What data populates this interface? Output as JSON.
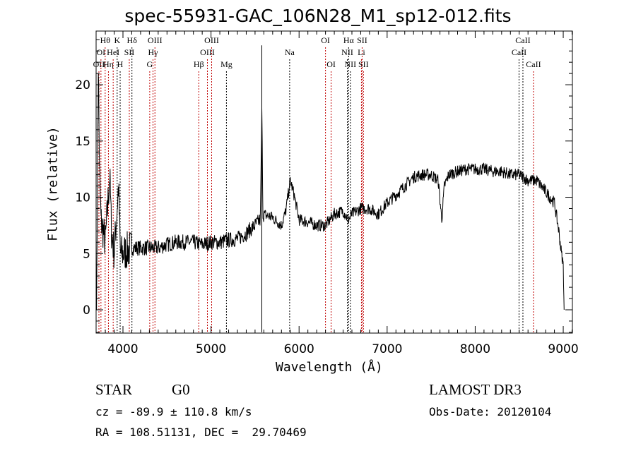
{
  "chart_data": {
    "type": "line",
    "title": "spec-55931-GAC_106N28_M1_sp12-012.fits",
    "xlabel": "Wavelength (Å)",
    "ylabel": "Flux (relative)",
    "xlim": [
      3695,
      9104
    ],
    "ylim": [
      -2.07,
      24.77
    ],
    "xticks": [
      4000,
      5000,
      6000,
      7000,
      8000,
      9000
    ],
    "yticks": [
      0,
      5,
      10,
      15,
      20
    ],
    "series": [
      {
        "name": "spectrum",
        "x": [
          3700,
          3710,
          3720,
          3735,
          3750,
          3800,
          3850,
          3870,
          3900,
          3950,
          3970,
          4000,
          4100,
          4200,
          4300,
          4400,
          4500,
          4600,
          4700,
          4800,
          4900,
          5000,
          5100,
          5200,
          5300,
          5400,
          5500,
          5560,
          5577,
          5590,
          5700,
          5800,
          5850,
          5900,
          5950,
          6000,
          6100,
          6200,
          6300,
          6400,
          6500,
          6560,
          6600,
          6700,
          6800,
          6900,
          7000,
          7100,
          7200,
          7300,
          7400,
          7500,
          7580,
          7620,
          7650,
          7700,
          7800,
          7900,
          8000,
          8100,
          8200,
          8300,
          8400,
          8500,
          8600,
          8700,
          8800,
          8900,
          8950,
          8980,
          9000,
          9010
        ],
        "y": [
          0,
          10,
          22,
          12,
          8,
          6,
          12,
          7,
          5,
          11,
          5,
          5,
          5.5,
          5.5,
          5.5,
          5.5,
          5.8,
          6,
          6,
          6,
          5.8,
          6,
          6,
          6.2,
          6.3,
          6.8,
          7.5,
          8,
          17.5,
          8.5,
          8.2,
          7.5,
          8.8,
          11.5,
          10,
          8,
          7.8,
          7.5,
          7.5,
          8.5,
          8.8,
          8,
          8.5,
          9,
          9,
          8.5,
          9.5,
          10.2,
          11,
          11.8,
          12,
          12,
          11.5,
          8,
          11,
          12,
          12.3,
          12.5,
          12.5,
          12.5,
          12.3,
          12.3,
          12,
          12,
          11.5,
          11.5,
          10.5,
          9.5,
          7,
          5,
          4,
          0
        ]
      }
    ],
    "spike": {
      "x": 5577,
      "ymin": -2,
      "ymax": 23.5
    },
    "lines": [
      {
        "w": 3727,
        "label": "OII",
        "row": 2,
        "color": "#c00000"
      },
      {
        "w": 3750,
        "label": "OI",
        "row": 1,
        "color": "#c00000"
      },
      {
        "w": 3798,
        "label": "Hθ",
        "row": 0,
        "color": "#c00000"
      },
      {
        "w": 3835,
        "label": "Hη",
        "row": 2,
        "color": "#c00000"
      },
      {
        "w": 3889,
        "label": "HeI",
        "row": 1,
        "color": "#c00000"
      },
      {
        "w": 3934,
        "label": "K",
        "row": 0,
        "color": "#000000"
      },
      {
        "w": 3968,
        "label": "H",
        "row": 2,
        "color": "#000000"
      },
      {
        "w": 4072,
        "label": "SII",
        "row": 1,
        "color": "#c00000"
      },
      {
        "w": 4102,
        "label": "Hδ",
        "row": 0,
        "color": "#000000"
      },
      {
        "w": 4304,
        "label": "G",
        "row": 2,
        "color": "#c00000"
      },
      {
        "w": 4341,
        "label": "Hγ",
        "row": 1,
        "color": "#c00000"
      },
      {
        "w": 4363,
        "label": "OIII",
        "row": 0,
        "color": "#c00000"
      },
      {
        "w": 4861,
        "label": "Hβ",
        "row": 2,
        "color": "#c00000"
      },
      {
        "w": 4959,
        "label": "OIII",
        "row": 1,
        "color": "#c00000"
      },
      {
        "w": 5007,
        "label": "OIII",
        "row": 0,
        "color": "#c00000"
      },
      {
        "w": 5175,
        "label": "Mg",
        "row": 2,
        "color": "#000000"
      },
      {
        "w": 5893,
        "label": "Na",
        "row": 1,
        "color": "#000000"
      },
      {
        "w": 6300,
        "label": "OI",
        "row": 0,
        "color": "#c00000"
      },
      {
        "w": 6364,
        "label": "OI",
        "row": 2,
        "color": "#c00000"
      },
      {
        "w": 6548,
        "label": "NII",
        "row": 1,
        "color": "#000000"
      },
      {
        "w": 6563,
        "label": "Hα",
        "row": 0,
        "color": "#000000"
      },
      {
        "w": 6583,
        "label": "NII",
        "row": 2,
        "color": "#000000"
      },
      {
        "w": 6708,
        "label": "Li",
        "row": 1,
        "color": "#c00000"
      },
      {
        "w": 6716,
        "label": "SII",
        "row": 0,
        "color": "#c00000"
      },
      {
        "w": 6731,
        "label": "SII",
        "row": 2,
        "color": "#c00000"
      },
      {
        "w": 8498,
        "label": "CaII",
        "row": 1,
        "color": "#000000"
      },
      {
        "w": 8542,
        "label": "CaII",
        "row": 0,
        "color": "#000000"
      },
      {
        "w": 8662,
        "label": "CaII",
        "row": 2,
        "color": "#c00000"
      }
    ]
  },
  "info": {
    "object_type": "STAR",
    "class": "G0",
    "cz": "cz = -89.9 ± 110.8 km/s",
    "radec": "RA = 108.51131, DEC =  29.70469",
    "survey": "LAMOST DR3",
    "obs_date": "Obs-Date: 20120104"
  }
}
